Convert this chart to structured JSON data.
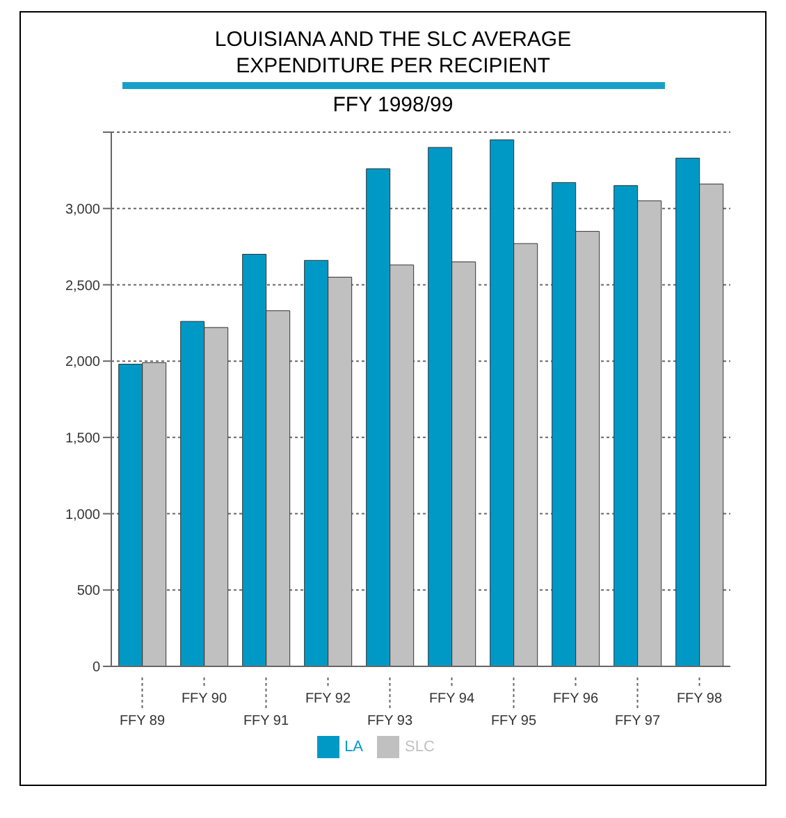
{
  "chart_data": {
    "type": "bar",
    "title": "LOUISIANA AND THE SLC AVERAGE EXPENDITURE PER RECIPIENT",
    "subtitle": "FFY 1998/99",
    "categories": [
      "FFY 89",
      "FFY 90",
      "FFY 91",
      "FFY 92",
      "FFY 93",
      "FFY 94",
      "FFY 95",
      "FFY 96",
      "FFY 97",
      "FFY 98"
    ],
    "series": [
      {
        "name": "LA",
        "color": "#0099c6",
        "values": [
          1980,
          2260,
          2700,
          2660,
          3260,
          3400,
          3450,
          3170,
          3150,
          3330
        ]
      },
      {
        "name": "SLC",
        "color": "#c0c0c0",
        "values": [
          1990,
          2220,
          2330,
          2550,
          2630,
          2650,
          2770,
          2850,
          3050,
          3160
        ]
      }
    ],
    "ylim": [
      0,
      3500
    ],
    "yticks": [
      {
        "value": 0,
        "label": "0"
      },
      {
        "value": 500,
        "label": "500"
      },
      {
        "value": 1000,
        "label": "1,000"
      },
      {
        "value": 1500,
        "label": "1,500"
      },
      {
        "value": 2000,
        "label": "2,000"
      },
      {
        "value": 2500,
        "label": "2,500"
      },
      {
        "value": 3000,
        "label": "3,000"
      },
      {
        "value": 3500,
        "label": null
      }
    ],
    "grid": "y",
    "legend": "bottom"
  }
}
